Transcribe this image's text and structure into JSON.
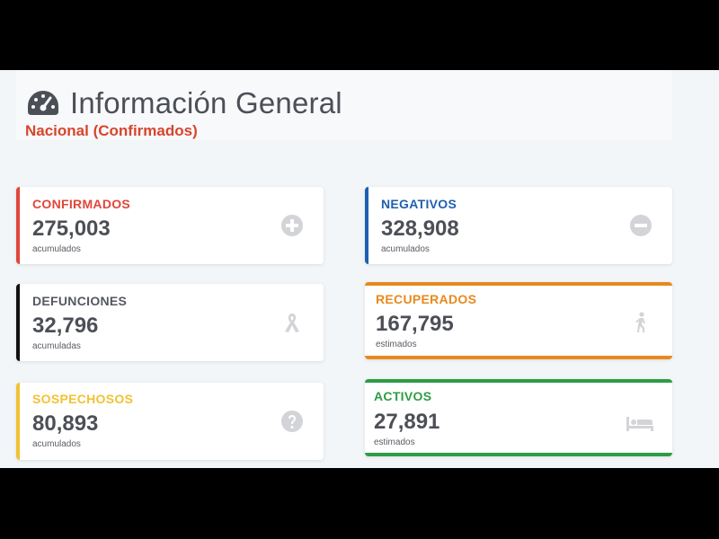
{
  "header": {
    "title": "Información General",
    "subtitle": "Nacional (Confirmados)",
    "icon": "dashboard-gauge-icon"
  },
  "cards": {
    "confirmados": {
      "label": "CONFIRMADOS",
      "value": "275,003",
      "note": "acumulados",
      "color": "#e0463a",
      "icon": "plus-circle-icon"
    },
    "negativos": {
      "label": "NEGATIVOS",
      "value": "328,908",
      "note": "acumulados",
      "color": "#1f5fb0",
      "icon": "minus-circle-icon"
    },
    "defunciones": {
      "label": "DEFUNCIONES",
      "value": "32,796",
      "note": "acumuladas",
      "color": "#111111",
      "icon": "ribbon-icon"
    },
    "recuperados": {
      "label": "RECUPERADOS",
      "value": "167,795",
      "note": "estimados",
      "color": "#e8891f",
      "icon": "walking-person-icon"
    },
    "sospechosos": {
      "label": "SOSPECHOSOS",
      "value": "80,893",
      "note": "acumulados",
      "color": "#f2c233",
      "icon": "question-circle-icon"
    },
    "activos": {
      "label": "ACTIVOS",
      "value": "27,891",
      "note": "estimados",
      "color": "#2e9c45",
      "icon": "bed-icon"
    }
  }
}
